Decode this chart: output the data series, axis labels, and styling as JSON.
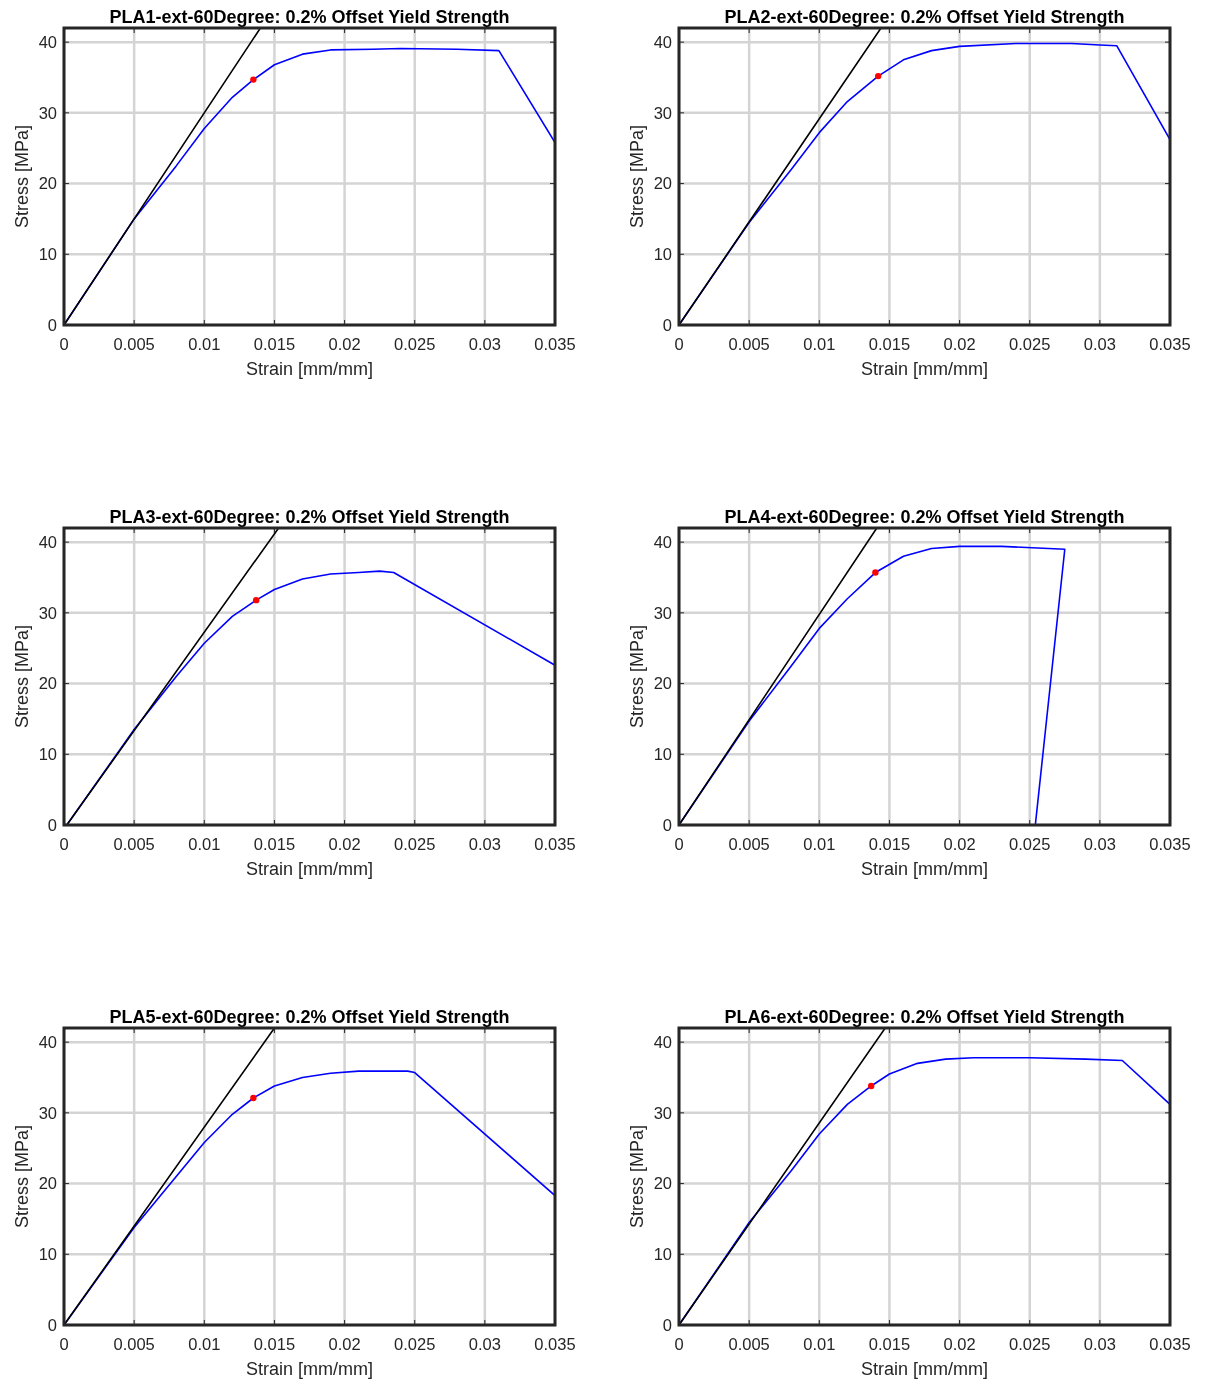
{
  "chart_data": [
    {
      "type": "line",
      "title": "PLA1-ext-60Degree: 0.2% Offset Yield Strength",
      "xlabel": "Strain [mm/mm]",
      "ylabel": "Stress [MPa]",
      "xlim": [
        0,
        0.035
      ],
      "ylim": [
        0,
        42
      ],
      "xticks": [
        0,
        0.005,
        0.01,
        0.015,
        0.02,
        0.025,
        0.03,
        0.035
      ],
      "yticks": [
        0,
        10,
        20,
        30,
        40
      ],
      "grid": true,
      "series": [
        {
          "color": "#0000ff",
          "x": [
            0,
            0.005,
            0.008,
            0.01,
            0.012,
            0.0135,
            0.015,
            0.017,
            0.019,
            0.022,
            0.024,
            0.028,
            0.031,
            0.035
          ],
          "values": [
            0,
            15,
            22.5,
            27.8,
            32.2,
            34.7,
            36.8,
            38.3,
            38.9,
            39,
            39.1,
            39,
            38.8,
            25.8
          ]
        },
        {
          "color": "#000000",
          "x": [
            0,
            0.014
          ],
          "values": [
            0,
            42
          ]
        },
        {
          "type": "scatter",
          "color": "#ff0000",
          "marker": "circle",
          "x": [
            0.0135
          ],
          "values": [
            34.7
          ]
        }
      ]
    },
    {
      "type": "line",
      "title": "PLA2-ext-60Degree: 0.2% Offset Yield Strength",
      "xlabel": "Strain [mm/mm]",
      "ylabel": "Stress [MPa]",
      "xlim": [
        0,
        0.035
      ],
      "ylim": [
        0,
        42
      ],
      "xticks": [
        0,
        0.005,
        0.01,
        0.015,
        0.02,
        0.025,
        0.03,
        0.035
      ],
      "yticks": [
        0,
        10,
        20,
        30,
        40
      ],
      "grid": true,
      "series": [
        {
          "color": "#0000ff",
          "x": [
            0,
            0.005,
            0.008,
            0.01,
            0.012,
            0.0142,
            0.016,
            0.018,
            0.02,
            0.024,
            0.028,
            0.03,
            0.0312,
            0.035
          ],
          "values": [
            0,
            14.5,
            22,
            27.2,
            31.6,
            35.2,
            37.5,
            38.8,
            39.4,
            39.8,
            39.8,
            39.6,
            39.5,
            26.2
          ]
        },
        {
          "color": "#000000",
          "x": [
            0,
            0.0144
          ],
          "values": [
            0,
            42
          ]
        },
        {
          "type": "scatter",
          "color": "#ff0000",
          "marker": "circle",
          "x": [
            0.0142
          ],
          "values": [
            35.2
          ]
        }
      ]
    },
    {
      "type": "line",
      "title": "PLA3-ext-60Degree: 0.2% Offset Yield Strength",
      "xlabel": "Strain [mm/mm]",
      "ylabel": "Stress [MPa]",
      "xlim": [
        0,
        0.035
      ],
      "ylim": [
        0,
        42
      ],
      "xticks": [
        0,
        0.005,
        0.01,
        0.015,
        0.02,
        0.025,
        0.03,
        0.035
      ],
      "yticks": [
        0,
        10,
        20,
        30,
        40
      ],
      "grid": true,
      "series": [
        {
          "color": "#0000ff",
          "x": [
            0.0002,
            0.005,
            0.008,
            0.01,
            0.012,
            0.0137,
            0.015,
            0.017,
            0.019,
            0.021,
            0.0225,
            0.0235,
            0.035
          ],
          "values": [
            0,
            13.5,
            21,
            25.7,
            29.5,
            31.8,
            33.3,
            34.8,
            35.5,
            35.7,
            35.9,
            35.7,
            22.6
          ]
        },
        {
          "color": "#000000",
          "x": [
            0.0002,
            0.0153
          ],
          "values": [
            0,
            42
          ]
        },
        {
          "type": "scatter",
          "color": "#ff0000",
          "marker": "circle",
          "x": [
            0.0137
          ],
          "values": [
            31.8
          ]
        }
      ]
    },
    {
      "type": "line",
      "title": "PLA4-ext-60Degree: 0.2% Offset Yield Strength",
      "xlabel": "Strain [mm/mm]",
      "ylabel": "Stress [MPa]",
      "xlim": [
        0,
        0.035
      ],
      "ylim": [
        0,
        42
      ],
      "xticks": [
        0,
        0.005,
        0.01,
        0.015,
        0.02,
        0.025,
        0.03,
        0.035
      ],
      "yticks": [
        0,
        10,
        20,
        30,
        40
      ],
      "grid": true,
      "series": [
        {
          "color": "#0000ff",
          "x": [
            0,
            0.005,
            0.008,
            0.01,
            0.012,
            0.014,
            0.016,
            0.018,
            0.02,
            0.023,
            0.0275,
            0.0254
          ],
          "values": [
            0,
            14.7,
            22.5,
            27.8,
            32,
            35.7,
            38,
            39.1,
            39.4,
            39.4,
            39,
            0
          ]
        },
        {
          "color": "#000000",
          "x": [
            0,
            0.0141
          ],
          "values": [
            0,
            42
          ]
        },
        {
          "type": "scatter",
          "color": "#ff0000",
          "marker": "circle",
          "x": [
            0.014
          ],
          "values": [
            35.7
          ]
        }
      ]
    },
    {
      "type": "line",
      "title": "PLA5-ext-60Degree: 0.2% Offset Yield Strength",
      "xlabel": "Strain [mm/mm]",
      "ylabel": "Stress [MPa]",
      "xlim": [
        0,
        0.035
      ],
      "ylim": [
        0,
        42
      ],
      "xticks": [
        0,
        0.005,
        0.01,
        0.015,
        0.02,
        0.025,
        0.03,
        0.035
      ],
      "yticks": [
        0,
        10,
        20,
        30,
        40
      ],
      "grid": true,
      "series": [
        {
          "color": "#0000ff",
          "x": [
            0,
            0.005,
            0.008,
            0.01,
            0.012,
            0.0135,
            0.015,
            0.017,
            0.019,
            0.021,
            0.0245,
            0.025,
            0.035
          ],
          "values": [
            0,
            13.8,
            21,
            25.8,
            29.8,
            32.1,
            33.8,
            35,
            35.6,
            35.9,
            35.9,
            35.7,
            18.3
          ]
        },
        {
          "color": "#000000",
          "x": [
            0,
            0.015
          ],
          "values": [
            0,
            42
          ]
        },
        {
          "type": "scatter",
          "color": "#ff0000",
          "marker": "circle",
          "x": [
            0.0135
          ],
          "values": [
            32.1
          ]
        }
      ]
    },
    {
      "type": "line",
      "title": "PLA6-ext-60Degree: 0.2% Offset Yield Strength",
      "xlabel": "Strain [mm/mm]",
      "ylabel": "Stress [MPa]",
      "xlim": [
        0,
        0.035
      ],
      "ylim": [
        0,
        42
      ],
      "xticks": [
        0,
        0.005,
        0.01,
        0.015,
        0.02,
        0.025,
        0.03,
        0.035
      ],
      "yticks": [
        0,
        10,
        20,
        30,
        40
      ],
      "grid": true,
      "series": [
        {
          "color": "#0000ff",
          "x": [
            0,
            0.005,
            0.008,
            0.01,
            0.012,
            0.0137,
            0.015,
            0.017,
            0.019,
            0.021,
            0.025,
            0.029,
            0.0316,
            0.035
          ],
          "values": [
            0,
            14.5,
            21.8,
            27,
            31.2,
            33.8,
            35.5,
            37,
            37.6,
            37.8,
            37.8,
            37.6,
            37.4,
            31.2
          ]
        },
        {
          "color": "#000000",
          "x": [
            0,
            0.0147
          ],
          "values": [
            0,
            42
          ]
        },
        {
          "type": "scatter",
          "color": "#ff0000",
          "marker": "circle",
          "x": [
            0.0137
          ],
          "values": [
            33.8
          ]
        }
      ]
    }
  ]
}
